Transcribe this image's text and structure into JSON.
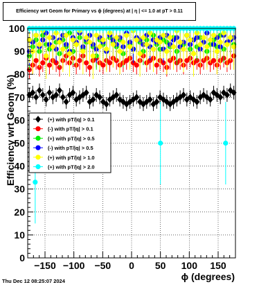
{
  "title": "Efficiency wrt Geom for Primary vs ϕ (degrees) at | η | <= 1.0 at pT > 0.11",
  "timestamp": "Thu Dec 12 08:25:07 2024",
  "chart_data": {
    "type": "scatter",
    "xlabel": "ϕ (degrees)",
    "ylabel": "Efficiency wrt Geom (%)",
    "xlim": [
      -180,
      180
    ],
    "ylim": [
      0,
      100
    ],
    "xticks": [
      -150,
      -100,
      -50,
      0,
      50,
      100,
      150
    ],
    "xtick_labels": [
      "−150",
      "−100",
      "−50",
      "0",
      "50",
      "100",
      "150"
    ],
    "yticks": [
      0,
      10,
      20,
      30,
      40,
      50,
      60,
      70,
      80,
      90,
      100
    ],
    "grid": true,
    "legend_position": "middle-left",
    "series": [
      {
        "name": "(+) with pT/|q| > 0.1",
        "color": "#000000",
        "marker": "diamond",
        "y": [
          71,
          72,
          70,
          73,
          71,
          69,
          72,
          70,
          71,
          73,
          70,
          68,
          71,
          72,
          69,
          70,
          71,
          72,
          68,
          69,
          71,
          70,
          68,
          67,
          69,
          70,
          71,
          69,
          68,
          67,
          68,
          69,
          70,
          68,
          67,
          68,
          69,
          67,
          68,
          70,
          69,
          68,
          67,
          68,
          69,
          70,
          71,
          69,
          70,
          69,
          68,
          70,
          71,
          70,
          69,
          72,
          71,
          70,
          72,
          71,
          73,
          72
        ],
        "err": [
          3,
          3,
          3,
          3,
          3,
          3,
          3,
          3,
          3,
          3,
          3,
          3,
          3,
          3,
          3,
          3,
          3,
          3,
          3,
          3,
          3,
          3,
          3,
          3,
          3,
          3,
          3,
          3,
          3,
          3,
          3,
          3,
          3,
          3,
          3,
          3,
          3,
          3,
          3,
          3,
          3,
          3,
          3,
          3,
          3,
          3,
          3,
          3,
          3,
          3,
          3,
          3,
          3,
          3,
          3,
          3,
          3,
          3,
          3,
          3,
          3,
          3
        ]
      },
      {
        "name": "(-) with pT/|q| > 0.1",
        "color": "#ff0000",
        "marker": "circle",
        "y": [
          82,
          84,
          86,
          83,
          85,
          87,
          84,
          86,
          85,
          83,
          86,
          88,
          85,
          87,
          84,
          86,
          88,
          85,
          83,
          86,
          87,
          85,
          84,
          86,
          85,
          87,
          86,
          84,
          85,
          86,
          87,
          85,
          84,
          86,
          88,
          85,
          86,
          87,
          84,
          86,
          85,
          83,
          86,
          87,
          85,
          86,
          84,
          86,
          87,
          85,
          86,
          84,
          86,
          87,
          85,
          86,
          84,
          86,
          87,
          85,
          86,
          88
        ],
        "err": [
          4,
          4,
          4,
          4,
          4,
          4,
          4,
          4,
          4,
          4,
          4,
          4,
          4,
          4,
          4,
          4,
          4,
          4,
          4,
          4,
          4,
          4,
          4,
          4,
          4,
          4,
          4,
          4,
          4,
          4,
          4,
          4,
          4,
          4,
          4,
          4,
          4,
          4,
          4,
          4,
          4,
          4,
          4,
          4,
          4,
          4,
          4,
          4,
          4,
          4,
          4,
          4,
          4,
          4,
          4,
          4,
          4,
          4,
          4,
          4,
          4,
          4
        ]
      },
      {
        "name": "(+) with pT/|q| > 0.5",
        "color": "#00ee00",
        "marker": "circle",
        "y": [
          88,
          92,
          95,
          90,
          97,
          93,
          91,
          96,
          94,
          89,
          95,
          92,
          98,
          90,
          93,
          96,
          91,
          94,
          97,
          92,
          88,
          95,
          93,
          90,
          96,
          94,
          92,
          95,
          89,
          97,
          93,
          91,
          96,
          94,
          90,
          95,
          92,
          97,
          93,
          91,
          95,
          94,
          92,
          96,
          90,
          94,
          93,
          97,
          91,
          95,
          92,
          96,
          94,
          90,
          93,
          95,
          92,
          97,
          91,
          94,
          96,
          93
        ],
        "err": [
          6,
          6,
          6,
          6,
          6,
          6,
          6,
          6,
          6,
          6,
          6,
          6,
          6,
          6,
          6,
          6,
          6,
          6,
          6,
          6,
          6,
          6,
          6,
          6,
          6,
          6,
          6,
          6,
          6,
          6,
          6,
          6,
          6,
          6,
          6,
          6,
          6,
          6,
          6,
          6,
          6,
          6,
          6,
          6,
          6,
          6,
          6,
          6,
          6,
          6,
          6,
          6,
          6,
          6,
          6,
          6,
          6,
          6,
          6,
          6,
          6,
          6
        ]
      },
      {
        "name": "(-) with pT/|q| > 0.5",
        "color": "#0000ff",
        "marker": "circle",
        "y": [
          90,
          94,
          97,
          92,
          95,
          98,
          93,
          96,
          91,
          95,
          97,
          93,
          90,
          96,
          94,
          98,
          92,
          95,
          97,
          93,
          91,
          96,
          94,
          90,
          97,
          95,
          93,
          96,
          92,
          98,
          94,
          91,
          96,
          95,
          93,
          97,
          92,
          95,
          94,
          96,
          91,
          97,
          93,
          95,
          96,
          92,
          94,
          97,
          93,
          95,
          96,
          91,
          94,
          98,
          95,
          93,
          96,
          92,
          97,
          94,
          95,
          96
        ],
        "err": [
          6,
          6,
          6,
          6,
          6,
          6,
          6,
          6,
          6,
          6,
          6,
          6,
          6,
          6,
          6,
          6,
          6,
          6,
          6,
          6,
          6,
          6,
          6,
          6,
          6,
          6,
          6,
          6,
          6,
          6,
          6,
          6,
          6,
          6,
          6,
          6,
          6,
          6,
          6,
          6,
          6,
          6,
          6,
          6,
          6,
          6,
          6,
          6,
          6,
          6,
          6,
          6,
          6,
          6,
          6,
          6,
          6,
          6,
          6,
          6,
          6,
          6
        ]
      },
      {
        "name": "(+) with pT/|q| > 1.0",
        "color": "#ffff00",
        "marker": "circle",
        "y": [
          95,
          90,
          97,
          93,
          99,
          88,
          96,
          92,
          98,
          94,
          91,
          97,
          89,
          95,
          93,
          99,
          90,
          96,
          94,
          88,
          97,
          92,
          95,
          91,
          98,
          93,
          96,
          90,
          94,
          97,
          92,
          99,
          95,
          89,
          96,
          93,
          98,
          91,
          95,
          94,
          97,
          90,
          96,
          92,
          99,
          94,
          91,
          97,
          95,
          89,
          98,
          93,
          96,
          92,
          95,
          97,
          90,
          94,
          98,
          93,
          96,
          92
        ],
        "err": [
          10,
          10,
          10,
          10,
          10,
          10,
          10,
          10,
          10,
          10,
          10,
          10,
          10,
          10,
          10,
          10,
          10,
          10,
          10,
          10,
          10,
          10,
          10,
          10,
          10,
          10,
          10,
          10,
          10,
          10,
          10,
          10,
          10,
          10,
          10,
          10,
          10,
          10,
          10,
          10,
          10,
          10,
          10,
          10,
          10,
          10,
          10,
          10,
          10,
          10,
          10,
          10,
          10,
          10,
          10,
          10,
          10,
          10,
          10,
          10,
          10,
          10
        ]
      },
      {
        "name": "(+) with pT/|q| > 2.0",
        "color": "#00ffff",
        "marker": "circle",
        "y": [
          100,
          100,
          100,
          100,
          100,
          100,
          100,
          100,
          100,
          100,
          100,
          100,
          100,
          100,
          100,
          100,
          100,
          100,
          100,
          100,
          100,
          100,
          100,
          100,
          100,
          100,
          100,
          100,
          100,
          100,
          100,
          100,
          100,
          100,
          100,
          100,
          100,
          100,
          100,
          100,
          100,
          100,
          100,
          100,
          100,
          100,
          100,
          100,
          100,
          100,
          100,
          100,
          100,
          100,
          100,
          100,
          100,
          100,
          100,
          100,
          100,
          100
        ],
        "err": [
          2,
          2,
          2,
          2,
          2,
          2,
          2,
          2,
          2,
          2,
          2,
          2,
          2,
          2,
          2,
          2,
          2,
          2,
          2,
          2,
          2,
          2,
          2,
          2,
          2,
          2,
          2,
          2,
          2,
          2,
          2,
          2,
          2,
          2,
          2,
          2,
          2,
          2,
          2,
          2,
          2,
          2,
          2,
          2,
          2,
          2,
          2,
          2,
          2,
          2,
          2,
          2,
          2,
          2,
          2,
          2,
          2,
          2,
          2,
          2,
          2,
          2
        ],
        "outliers": [
          {
            "x": -167,
            "y": 33
          },
          {
            "x": 50,
            "y": 50
          },
          {
            "x": 163,
            "y": 50
          }
        ]
      }
    ]
  }
}
